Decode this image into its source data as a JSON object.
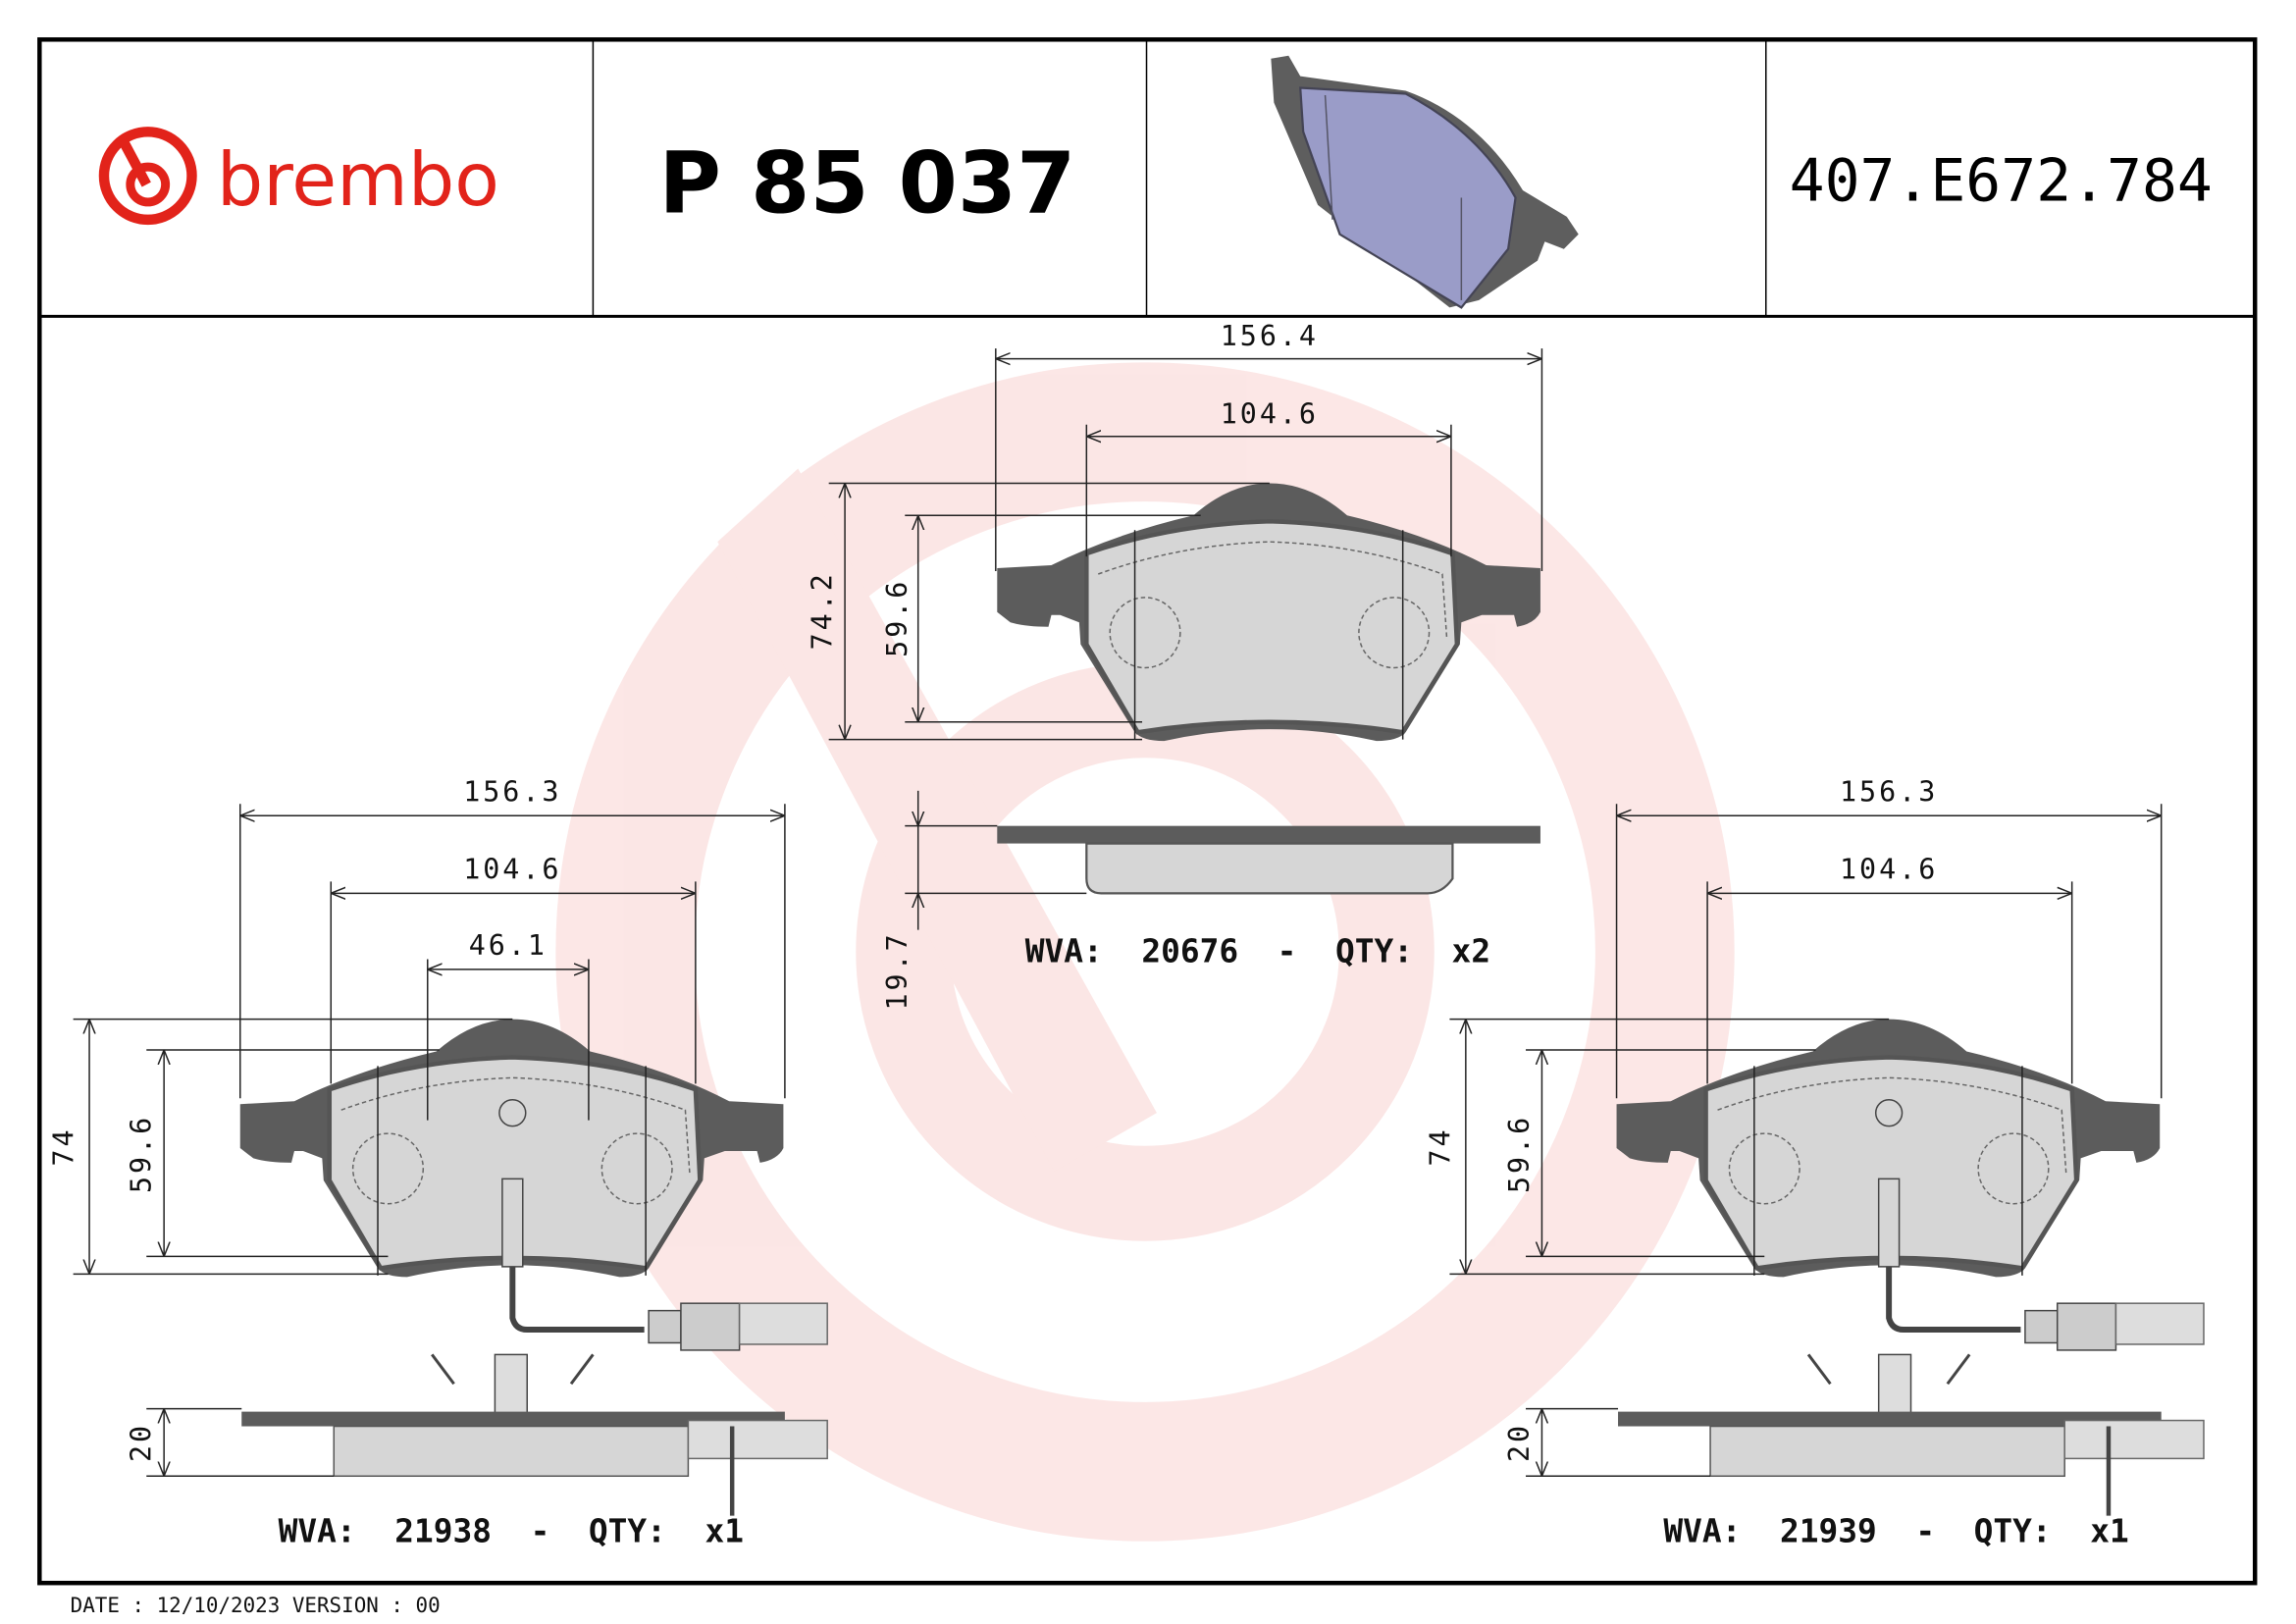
{
  "header": {
    "brand": "brembo",
    "part_number": "P 85 037",
    "reference": "407.E672.784",
    "brand_color": "#e2231a",
    "pad_preview_color": "#9a9cc8"
  },
  "watermark": {
    "logo": "brembo",
    "color": "#e2231a"
  },
  "top_pad": {
    "width_overall": "156.4",
    "width_friction": "104.6",
    "height_overall": "74.2",
    "height_friction": "59.6",
    "thickness": "19.7",
    "label": "WVA:  20676  -  QTY:  x2"
  },
  "left_pad": {
    "width_overall": "156.3",
    "width_friction": "104.6",
    "width_sensor": "46.1",
    "height_overall": "74",
    "height_friction": "59.6",
    "thickness": "20",
    "label": "WVA:  21938  -  QTY:  x1"
  },
  "right_pad": {
    "width_overall": "156.3",
    "width_friction": "104.6",
    "height_overall": "74",
    "height_friction": "59.6",
    "thickness": "20",
    "label": "WVA:  21939  -  QTY:  x1"
  },
  "footer": {
    "text": "DATE : 12/10/2023 VERSION : 00"
  }
}
